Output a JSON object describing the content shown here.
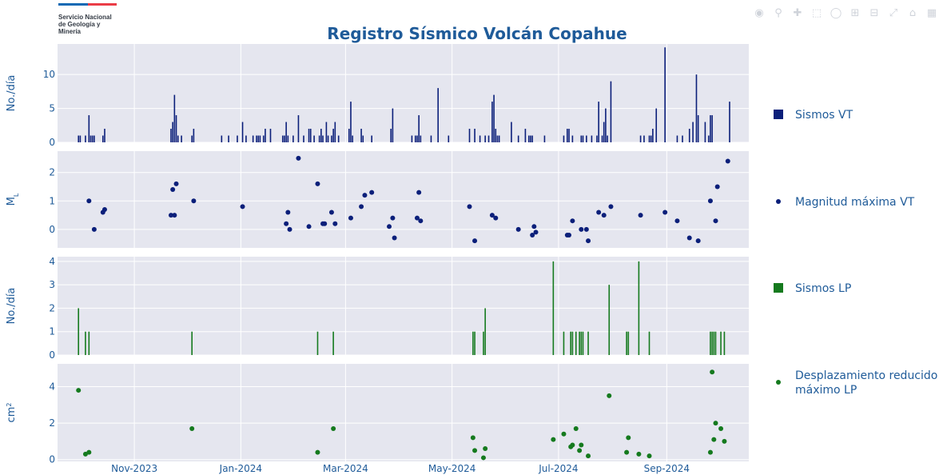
{
  "logo": {
    "line1": "Servicio Nacional",
    "line2": "de Geología y",
    "line3": "Minería",
    "colors": [
      "#0f69b4",
      "#eb3c46"
    ]
  },
  "modebar": {
    "icons": [
      "camera-icon",
      "zoom-icon",
      "pan-icon",
      "box-select-icon",
      "lasso-icon",
      "zoom-in-icon",
      "zoom-out-icon",
      "autoscale-icon",
      "reset-axes-icon",
      "plotly-logo-icon"
    ]
  },
  "colors": {
    "vt": "#0b1f7a",
    "lp": "#157a1e",
    "plot_bg": "#e5e6ef",
    "grid": "#ffffff",
    "axis_text": "#1f5b99",
    "title": "#1f5b99"
  },
  "chart_data": {
    "type": "multi-panel",
    "title": "Registro Sísmico Volcán Copahue",
    "x_range": [
      "2023-09-18",
      "2024-10-18"
    ],
    "x_ticks": [
      {
        "date": "2023-11-01",
        "label": "Nov-2023"
      },
      {
        "date": "2024-01-01",
        "label": "Jan-2024"
      },
      {
        "date": "2024-03-01",
        "label": "Mar-2024"
      },
      {
        "date": "2024-05-01",
        "label": "May-2024"
      },
      {
        "date": "2024-07-01",
        "label": "Jul-2024"
      },
      {
        "date": "2024-09-01",
        "label": "Sep-2024"
      }
    ],
    "panels": [
      {
        "id": "vt",
        "type": "bar",
        "ylabel": "No./día",
        "ylim": [
          0,
          14.5
        ],
        "yticks": [
          0,
          5,
          10
        ],
        "series": {
          "name": "Sismos VT",
          "points": [
            [
              "2023-09-30",
              1
            ],
            [
              "2023-10-01",
              1
            ],
            [
              "2023-10-04",
              1
            ],
            [
              "2023-10-06",
              4
            ],
            [
              "2023-10-07",
              1
            ],
            [
              "2023-10-08",
              1
            ],
            [
              "2023-10-09",
              1
            ],
            [
              "2023-10-14",
              1
            ],
            [
              "2023-10-15",
              2
            ],
            [
              "2023-11-22",
              2
            ],
            [
              "2023-11-23",
              3
            ],
            [
              "2023-11-24",
              7
            ],
            [
              "2023-11-25",
              4
            ],
            [
              "2023-11-26",
              1
            ],
            [
              "2023-11-28",
              1
            ],
            [
              "2023-12-04",
              1
            ],
            [
              "2023-12-05",
              2
            ],
            [
              "2023-12-21",
              1
            ],
            [
              "2023-12-25",
              1
            ],
            [
              "2023-12-30",
              1
            ],
            [
              "2024-01-02",
              3
            ],
            [
              "2024-01-04",
              1
            ],
            [
              "2024-01-08",
              1
            ],
            [
              "2024-01-10",
              1
            ],
            [
              "2024-01-11",
              1
            ],
            [
              "2024-01-12",
              1
            ],
            [
              "2024-01-14",
              1
            ],
            [
              "2024-01-15",
              2
            ],
            [
              "2024-01-18",
              2
            ],
            [
              "2024-01-25",
              1
            ],
            [
              "2024-01-26",
              1
            ],
            [
              "2024-01-27",
              3
            ],
            [
              "2024-01-28",
              1
            ],
            [
              "2024-01-31",
              1
            ],
            [
              "2024-02-03",
              4
            ],
            [
              "2024-02-06",
              1
            ],
            [
              "2024-02-09",
              2
            ],
            [
              "2024-02-10",
              2
            ],
            [
              "2024-02-12",
              1
            ],
            [
              "2024-02-15",
              1
            ],
            [
              "2024-02-16",
              2
            ],
            [
              "2024-02-17",
              1
            ],
            [
              "2024-02-19",
              3
            ],
            [
              "2024-02-20",
              1
            ],
            [
              "2024-02-22",
              1
            ],
            [
              "2024-02-23",
              2
            ],
            [
              "2024-02-24",
              3
            ],
            [
              "2024-02-26",
              1
            ],
            [
              "2024-03-03",
              2
            ],
            [
              "2024-03-04",
              6
            ],
            [
              "2024-03-05",
              1
            ],
            [
              "2024-03-10",
              2
            ],
            [
              "2024-03-11",
              1
            ],
            [
              "2024-03-16",
              1
            ],
            [
              "2024-03-27",
              2
            ],
            [
              "2024-03-28",
              5
            ],
            [
              "2024-04-08",
              1
            ],
            [
              "2024-04-10",
              1
            ],
            [
              "2024-04-11",
              1
            ],
            [
              "2024-04-12",
              4
            ],
            [
              "2024-04-13",
              1
            ],
            [
              "2024-04-19",
              1
            ],
            [
              "2024-04-23",
              8
            ],
            [
              "2024-04-29",
              1
            ],
            [
              "2024-05-11",
              2
            ],
            [
              "2024-05-14",
              2
            ],
            [
              "2024-05-17",
              1
            ],
            [
              "2024-05-20",
              1
            ],
            [
              "2024-05-22",
              1
            ],
            [
              "2024-05-24",
              6
            ],
            [
              "2024-05-25",
              7
            ],
            [
              "2024-05-26",
              2
            ],
            [
              "2024-05-27",
              1
            ],
            [
              "2024-05-28",
              1
            ],
            [
              "2024-06-04",
              3
            ],
            [
              "2024-06-08",
              1
            ],
            [
              "2024-06-12",
              2
            ],
            [
              "2024-06-14",
              1
            ],
            [
              "2024-06-15",
              1
            ],
            [
              "2024-06-16",
              1
            ],
            [
              "2024-06-23",
              1
            ],
            [
              "2024-07-04",
              1
            ],
            [
              "2024-07-06",
              2
            ],
            [
              "2024-07-07",
              2
            ],
            [
              "2024-07-09",
              1
            ],
            [
              "2024-07-14",
              1
            ],
            [
              "2024-07-15",
              1
            ],
            [
              "2024-07-17",
              1
            ],
            [
              "2024-07-20",
              1
            ],
            [
              "2024-07-23",
              1
            ],
            [
              "2024-07-24",
              6
            ],
            [
              "2024-07-26",
              1
            ],
            [
              "2024-07-27",
              3
            ],
            [
              "2024-07-28",
              5
            ],
            [
              "2024-07-29",
              1
            ],
            [
              "2024-07-31",
              9
            ],
            [
              "2024-08-17",
              1
            ],
            [
              "2024-08-19",
              1
            ],
            [
              "2024-08-22",
              1
            ],
            [
              "2024-08-23",
              1
            ],
            [
              "2024-08-24",
              2
            ],
            [
              "2024-08-26",
              5
            ],
            [
              "2024-08-31",
              14
            ],
            [
              "2024-09-07",
              1
            ],
            [
              "2024-09-10",
              1
            ],
            [
              "2024-09-14",
              2
            ],
            [
              "2024-09-16",
              3
            ],
            [
              "2024-09-18",
              10
            ],
            [
              "2024-09-19",
              4
            ],
            [
              "2024-09-23",
              3
            ],
            [
              "2024-09-25",
              1
            ],
            [
              "2024-09-26",
              4
            ],
            [
              "2024-09-27",
              4
            ],
            [
              "2024-10-07",
              6
            ]
          ]
        }
      },
      {
        "id": "ml",
        "type": "scatter",
        "ylabel": "M L",
        "ylim": [
          -0.65,
          2.75
        ],
        "yticks": [
          0,
          1,
          2
        ],
        "series": {
          "name": "Magnitud máxima VT",
          "points": [
            [
              "2023-10-06",
              1
            ],
            [
              "2023-10-09",
              0
            ],
            [
              "2023-10-14",
              0.6
            ],
            [
              "2023-10-15",
              0.7
            ],
            [
              "2023-11-22",
              0.5
            ],
            [
              "2023-11-23",
              1.4
            ],
            [
              "2023-11-24",
              0.5
            ],
            [
              "2023-11-25",
              1.6
            ],
            [
              "2023-12-05",
              1
            ],
            [
              "2024-01-02",
              0.8
            ],
            [
              "2024-01-27",
              0.2
            ],
            [
              "2024-01-28",
              0.6
            ],
            [
              "2024-01-29",
              0
            ],
            [
              "2024-02-03",
              2.5
            ],
            [
              "2024-02-09",
              0.1
            ],
            [
              "2024-02-14",
              1.6
            ],
            [
              "2024-02-17",
              0.2
            ],
            [
              "2024-02-18",
              0.2
            ],
            [
              "2024-02-22",
              0.6
            ],
            [
              "2024-02-24",
              0.2
            ],
            [
              "2024-03-04",
              0.4
            ],
            [
              "2024-03-10",
              0.8
            ],
            [
              "2024-03-12",
              1.2
            ],
            [
              "2024-03-16",
              1.3
            ],
            [
              "2024-03-26",
              0.1
            ],
            [
              "2024-03-28",
              0.4
            ],
            [
              "2024-03-29",
              -0.3
            ],
            [
              "2024-04-11",
              0.4
            ],
            [
              "2024-04-12",
              1.3
            ],
            [
              "2024-04-13",
              0.3
            ],
            [
              "2024-05-11",
              0.8
            ],
            [
              "2024-05-14",
              -0.4
            ],
            [
              "2024-05-24",
              0.5
            ],
            [
              "2024-05-26",
              0.4
            ],
            [
              "2024-06-08",
              0
            ],
            [
              "2024-06-16",
              -0.2
            ],
            [
              "2024-06-17",
              0.1
            ],
            [
              "2024-06-18",
              -0.1
            ],
            [
              "2024-07-06",
              -0.2
            ],
            [
              "2024-07-07",
              -0.2
            ],
            [
              "2024-07-09",
              0.3
            ],
            [
              "2024-07-14",
              0
            ],
            [
              "2024-07-17",
              0
            ],
            [
              "2024-07-18",
              -0.4
            ],
            [
              "2024-07-24",
              0.6
            ],
            [
              "2024-07-27",
              0.5
            ],
            [
              "2024-07-31",
              0.8
            ],
            [
              "2024-08-17",
              0.5
            ],
            [
              "2024-08-31",
              0.6
            ],
            [
              "2024-09-07",
              0.3
            ],
            [
              "2024-09-14",
              -0.3
            ],
            [
              "2024-09-19",
              -0.4
            ],
            [
              "2024-09-26",
              1
            ],
            [
              "2024-09-29",
              0.3
            ],
            [
              "2024-09-30",
              1.5
            ],
            [
              "2024-10-06",
              2.4
            ]
          ]
        }
      },
      {
        "id": "lp",
        "type": "bar",
        "ylabel": "No./día",
        "ylim": [
          0,
          4.2
        ],
        "yticks": [
          0,
          1,
          2,
          3,
          4
        ],
        "series": {
          "name": "Sismos LP",
          "points": [
            [
              "2023-09-30",
              2
            ],
            [
              "2023-10-04",
              1
            ],
            [
              "2023-10-06",
              1
            ],
            [
              "2023-12-04",
              1
            ],
            [
              "2024-02-14",
              1
            ],
            [
              "2024-02-23",
              1
            ],
            [
              "2024-05-13",
              1
            ],
            [
              "2024-05-14",
              1
            ],
            [
              "2024-05-19",
              1
            ],
            [
              "2024-05-20",
              2
            ],
            [
              "2024-06-28",
              4
            ],
            [
              "2024-07-04",
              1
            ],
            [
              "2024-07-08",
              1
            ],
            [
              "2024-07-09",
              1
            ],
            [
              "2024-07-11",
              1
            ],
            [
              "2024-07-13",
              1
            ],
            [
              "2024-07-14",
              1
            ],
            [
              "2024-07-15",
              1
            ],
            [
              "2024-07-18",
              1
            ],
            [
              "2024-07-30",
              3
            ],
            [
              "2024-08-09",
              1
            ],
            [
              "2024-08-10",
              1
            ],
            [
              "2024-08-16",
              4
            ],
            [
              "2024-08-22",
              1
            ],
            [
              "2024-09-26",
              1
            ],
            [
              "2024-09-27",
              1
            ],
            [
              "2024-09-28",
              1
            ],
            [
              "2024-09-29",
              1
            ],
            [
              "2024-10-02",
              1
            ],
            [
              "2024-10-04",
              1
            ]
          ]
        }
      },
      {
        "id": "dr",
        "type": "scatter",
        "ylabel": "cm 2",
        "ylim": [
          -0.1,
          5.25
        ],
        "yticks": [
          0,
          2,
          4
        ],
        "series": {
          "name": "Desplazamiento reducido máximo LP",
          "points": [
            [
              "2023-09-30",
              3.8
            ],
            [
              "2023-10-04",
              0.3
            ],
            [
              "2023-10-06",
              0.4
            ],
            [
              "2023-12-04",
              1.7
            ],
            [
              "2024-02-14",
              0.4
            ],
            [
              "2024-02-23",
              1.7
            ],
            [
              "2024-05-13",
              1.2
            ],
            [
              "2024-05-14",
              0.5
            ],
            [
              "2024-05-19",
              0.1
            ],
            [
              "2024-05-20",
              0.6
            ],
            [
              "2024-06-28",
              1.1
            ],
            [
              "2024-07-04",
              1.4
            ],
            [
              "2024-07-08",
              0.7
            ],
            [
              "2024-07-09",
              0.8
            ],
            [
              "2024-07-11",
              1.7
            ],
            [
              "2024-07-13",
              0.5
            ],
            [
              "2024-07-14",
              0.8
            ],
            [
              "2024-07-18",
              0.2
            ],
            [
              "2024-07-30",
              3.5
            ],
            [
              "2024-08-09",
              0.4
            ],
            [
              "2024-08-10",
              1.2
            ],
            [
              "2024-08-16",
              0.3
            ],
            [
              "2024-08-22",
              0.2
            ],
            [
              "2024-09-26",
              0.4
            ],
            [
              "2024-09-27",
              4.8
            ],
            [
              "2024-09-28",
              1.1
            ],
            [
              "2024-09-29",
              2
            ],
            [
              "2024-10-02",
              1.7
            ],
            [
              "2024-10-04",
              1
            ]
          ]
        }
      }
    ]
  }
}
